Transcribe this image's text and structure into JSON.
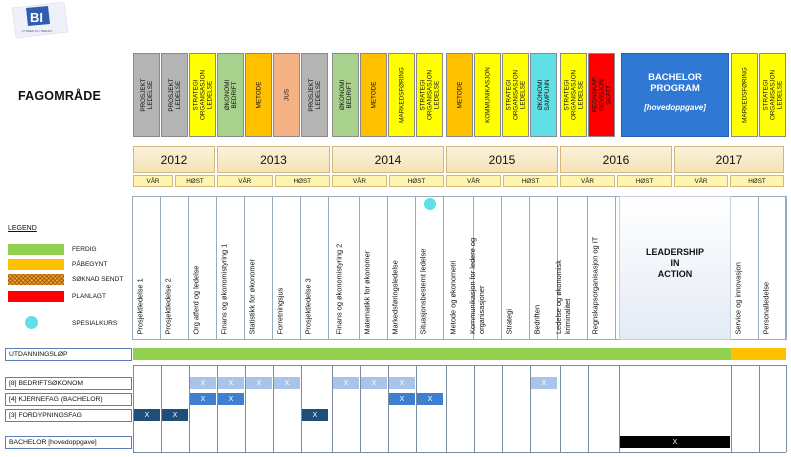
{
  "fagomrade_title": "FAGOMRÅDE",
  "logo": {
    "text": "BI",
    "sub": "FYNDER DU TREHET"
  },
  "subject_areas": [
    {
      "label": "PROSJEKT\nLEDELSE",
      "color": "#b4b4b4"
    },
    {
      "label": "PROSJEKT\nLEDELSE",
      "color": "#b4b4b4"
    },
    {
      "label": "STRATEGI\nORGANISASJON\nLEDELSE",
      "color": "#ffff00"
    },
    {
      "label": "ØKONOMI\nBEDRIFT",
      "color": "#a9d18e"
    },
    {
      "label": "METODE",
      "color": "#ffc000"
    },
    {
      "label": "JUS",
      "color": "#f4b183"
    },
    {
      "label": "PROSJEKT\nLEDELSE",
      "color": "#b4b4b4"
    },
    {
      "label": "ØKONOMI\nBEDRIFT",
      "color": "#a9d18e"
    },
    {
      "label": "METODE",
      "color": "#ffc000"
    },
    {
      "label": "MARKEDSFØRING",
      "color": "#ffff00"
    },
    {
      "label": "STRATEGI\nORGANISASJON\nLEDELSE",
      "color": "#ffff00"
    },
    {
      "label": "METODE",
      "color": "#ffc000"
    },
    {
      "label": "KOMMUNIKASJON",
      "color": "#ffff00"
    },
    {
      "label": "STRATEGI\nORGANISASJON\nLEDELSE",
      "color": "#ffff00"
    },
    {
      "label": "ØKONOMI\nSAMFUNN",
      "color": "#5ee0e6"
    },
    {
      "label": "STRATEGI\nORGANISASJON\nLEDELSE",
      "color": "#ffff00"
    },
    {
      "label": "REGNSKAP\nREVISJON\nSKATT",
      "color": "#ff0000"
    }
  ],
  "subject_areas_right": [
    {
      "label": "MARKEDSFØRING",
      "color": "#ffff00"
    },
    {
      "label": "STRATEGI\nORGANISASJON\nLEDELSE",
      "color": "#ffff00"
    }
  ],
  "bachelor_program": {
    "title": "BACHELOR\nPROGRAM",
    "subtitle": "[hovedoppgave]"
  },
  "years": [
    "2012",
    "2013",
    "2014",
    "2015",
    "2016",
    "2017"
  ],
  "semesters": [
    "VÅR",
    "HØST",
    "VÅR",
    "HØST",
    "VÅR",
    "HØST",
    "VÅR",
    "HØST",
    "VÅR",
    "HØST",
    "VÅR",
    "HØST"
  ],
  "courses": [
    "Prosjektledelse 1",
    "Prosjektledelse 2",
    "Org atferd og ledelse",
    "Finans og økonomistyring 1",
    "Statistikk for økonomer",
    "Forretningsjus",
    "Prosjektledelse 3",
    "Finans og økonomistyring 2",
    "Matematikk for økonomer",
    "Markedsføringsledelse",
    "Situasjonsbestemt ledelse",
    "Metode og økonometri",
    "Kommunikasjon for ledere og\norganisasjoner",
    "Strategi",
    "Bedriften",
    "Ledelse og økonomisk\nkriminalitet",
    "Regnskapsorganisasjon og IT"
  ],
  "courses_right": [
    "Service og innovasjon",
    "Personalledelse"
  ],
  "leadership": "LEADERSHIP\nIN\nACTION",
  "legend": {
    "title": "LEGEND",
    "items": [
      {
        "label": "FERDIG",
        "color": "#92d050"
      },
      {
        "label": "PÅBEGYNT",
        "color": "#ffc000"
      },
      {
        "label": "SØKNAD SENDT",
        "color": "#f3a02e"
      },
      {
        "label": "PLANLAGT",
        "color": "#ff0000"
      },
      {
        "label": "SPESIALKURS",
        "color": "#5ee0e6"
      }
    ]
  },
  "rows": {
    "utdanningslop": "UTDANNINGSLØP",
    "bedriftsokonom": "[8] BEDRIFTSØKONOM",
    "kjernefag": "[4] KJERNEFAG (BACHELOR)",
    "fordypningsfag": "[3] FORDYPNINGSFAG",
    "bachelor": "BACHELOR [hovedoppgave]"
  },
  "mark": "X",
  "colors": {
    "done": "#92d050",
    "started": "#ffc000",
    "light_blue": "#a9c4eb",
    "mid_blue": "#3f7fd0",
    "dark_blue": "#1f4e79",
    "black": "#000000"
  }
}
